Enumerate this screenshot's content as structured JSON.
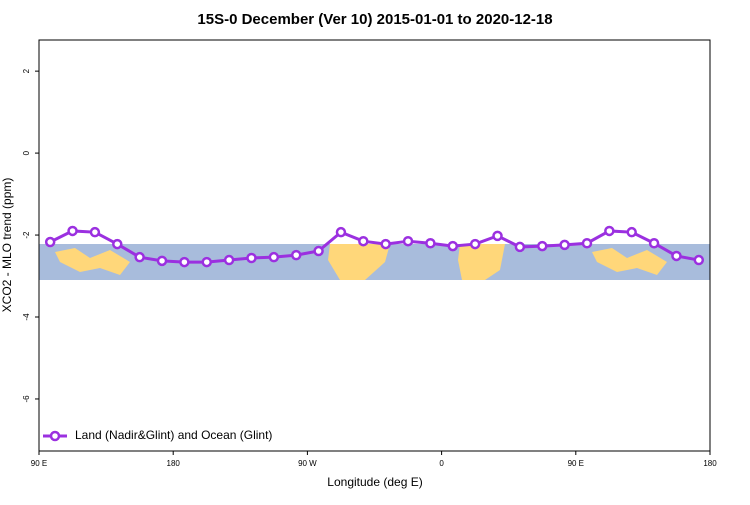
{
  "chart_data": {
    "type": "line",
    "title": "15S-0 December (Ver 10)   2015-01-01 to 2020-12-18",
    "x_label": "Longitude (deg E)",
    "y_label": "XCO2 - MLO trend (ppm)",
    "x": [
      97.5,
      112.5,
      127.5,
      142.5,
      157.5,
      172.5,
      187.5,
      202.5,
      217.5,
      232.5,
      247.5,
      262.5,
      277.5,
      292.5,
      307.5,
      322.5,
      337.5,
      352.5,
      367.5,
      382.5,
      397.5,
      412.5,
      427.5,
      442.5,
      457.5,
      472.5,
      487.5,
      502.5,
      517.5,
      532.5
    ],
    "series": [
      {
        "name": "Land (Nadir&Glint) and Ocean (Glint)",
        "color": "#9b30e0",
        "values": [
          -2.17,
          -1.9,
          -1.93,
          -2.22,
          -2.54,
          -2.63,
          -2.66,
          -2.66,
          -2.61,
          -2.56,
          -2.54,
          -2.49,
          -2.39,
          -1.93,
          -2.15,
          -2.22,
          -2.15,
          -2.2,
          -2.27,
          -2.22,
          -2.02,
          -2.29,
          -2.27,
          -2.24,
          -2.2,
          -1.9,
          -1.93,
          -2.2,
          -2.51,
          -2.61
        ]
      }
    ],
    "xlim": [
      90,
      540
    ],
    "xticks": [
      {
        "value": 90,
        "label": "90 E"
      },
      180,
      {
        "value": 270,
        "label": "90 W"
      },
      {
        "value": 360,
        "label": "0"
      },
      {
        "value": 450,
        "label": "90 E"
      },
      {
        "value": 540,
        "label": "180"
      }
    ],
    "ylim": [
      -7.27,
      2.76
    ],
    "yticks": [
      2,
      0,
      -2,
      -4,
      -6
    ],
    "legend": "bottom-left"
  }
}
